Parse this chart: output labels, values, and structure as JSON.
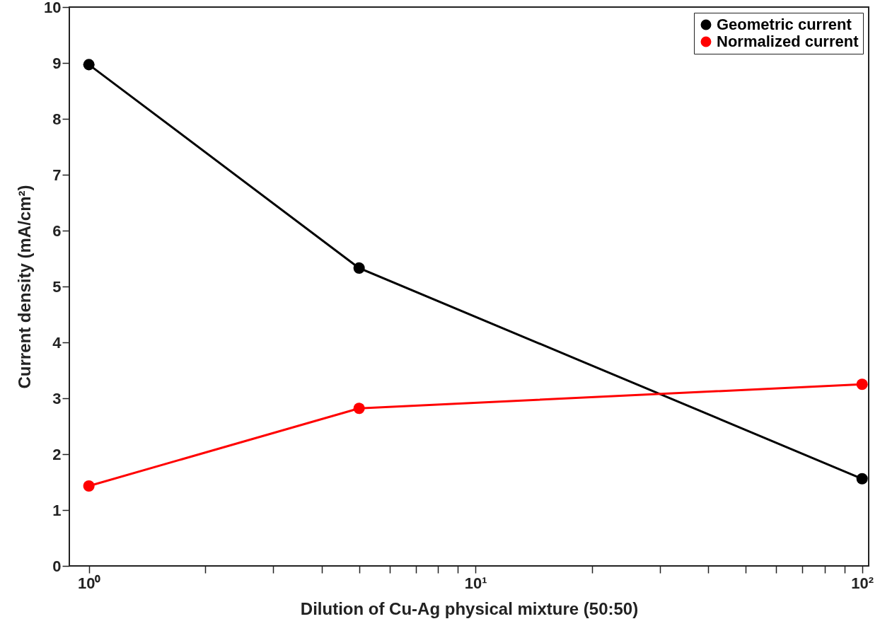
{
  "chart_data": {
    "type": "line",
    "xlabel": "Dilution of Cu-Ag physical mixture (50:50)",
    "ylabel": "Current density (mA/cm²)",
    "log": "x",
    "x": [
      1,
      5,
      100
    ],
    "series": [
      {
        "name": "Geometric current",
        "color": "#000000",
        "values": [
          8.97,
          5.33,
          1.56
        ]
      },
      {
        "name": "Normalized current",
        "color": "#ff0000",
        "values": [
          1.43,
          2.82,
          3.25
        ]
      }
    ],
    "xlim": [
      0.89,
      104
    ],
    "xticks": [
      {
        "value": 1,
        "label": "10⁰"
      },
      {
        "value": 2,
        "label": null
      },
      {
        "value": 3,
        "label": null
      },
      {
        "value": 4,
        "label": null
      },
      {
        "value": 5,
        "label": null
      },
      {
        "value": 6,
        "label": null
      },
      {
        "value": 7,
        "label": null
      },
      {
        "value": 8,
        "label": null
      },
      {
        "value": 9,
        "label": null
      },
      {
        "value": 10,
        "label": "10¹"
      },
      {
        "value": 20,
        "label": null
      },
      {
        "value": 30,
        "label": null
      },
      {
        "value": 40,
        "label": null
      },
      {
        "value": 50,
        "label": null
      },
      {
        "value": 60,
        "label": null
      },
      {
        "value": 70,
        "label": null
      },
      {
        "value": 80,
        "label": null
      },
      {
        "value": 90,
        "label": null
      },
      {
        "value": 100,
        "label": "10²"
      }
    ],
    "ylim": [
      0,
      10
    ],
    "yticks": [
      0,
      1,
      2,
      3,
      4,
      5,
      6,
      7,
      8,
      9,
      10
    ],
    "grid": false,
    "legend": "top right",
    "marker": "circle",
    "line_style": "solid"
  }
}
